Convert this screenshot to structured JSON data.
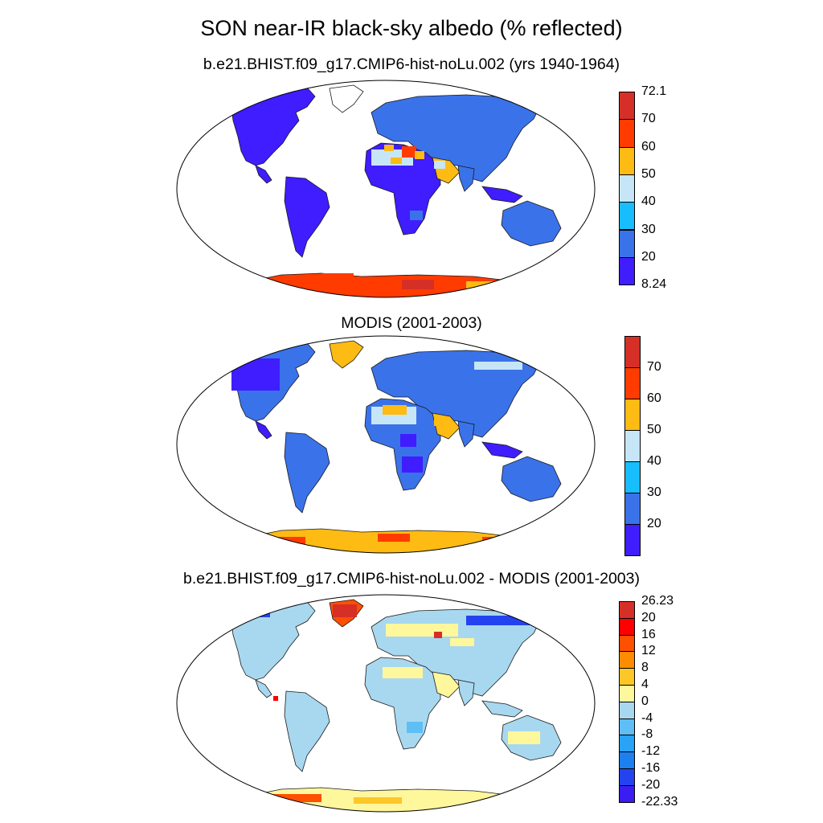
{
  "title": "SON near-IR black-sky albedo (% reflected)",
  "panels": [
    {
      "subtitle": "b.e21.BHIST.f09_g17.CMIP6-hist-noLu.002 (yrs 1940-1964)",
      "colorbar": {
        "labels": [
          "72.1",
          "70",
          "60",
          "50",
          "40",
          "30",
          "20",
          "8.24"
        ],
        "colors": [
          "#d62f27",
          "#ff3b00",
          "#fdbb13",
          "#c6e6f7",
          "#17bdfc",
          "#3a72e9",
          "#3f1dff"
        ]
      }
    },
    {
      "subtitle": "MODIS (2001-2003)",
      "colorbar": {
        "labels": [
          "70",
          "60",
          "50",
          "40",
          "30",
          "20"
        ],
        "colors": [
          "#d62f27",
          "#ff3b00",
          "#fdbb13",
          "#c6e6f7",
          "#17bdfc",
          "#3a72e9",
          "#3f1dff"
        ]
      }
    },
    {
      "subtitle": "b.e21.BHIST.f09_g17.CMIP6-hist-noLu.002 - MODIS (2001-2003)",
      "colorbar": {
        "labels": [
          "26.23",
          "20",
          "16",
          "12",
          "8",
          "4",
          "0",
          "-4",
          "-8",
          "-12",
          "-16",
          "-20",
          "-22.33"
        ],
        "colors": [
          "#d62f27",
          "#ff0000",
          "#ff4f00",
          "#ff8c00",
          "#fdc727",
          "#fef79c",
          "#a8d8ef",
          "#5ebef5",
          "#2aa2f5",
          "#1c80f0",
          "#2443f0",
          "#3a1df0"
        ]
      }
    }
  ]
}
